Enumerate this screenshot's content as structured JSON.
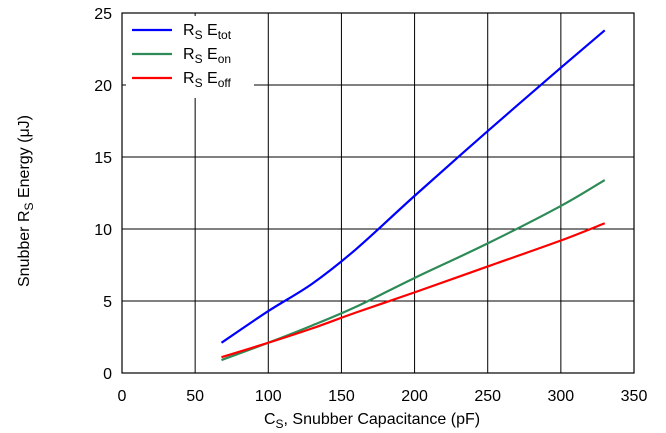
{
  "chart_data": {
    "type": "line",
    "xlabel": {
      "main": "C",
      "sub": "S",
      "rest": ", Snubber Capacitance (pF)"
    },
    "ylabel": {
      "pre": "Snubber  R",
      "sub": "S",
      "rest": " Energy (μJ)"
    },
    "xlim": [
      0,
      350
    ],
    "ylim": [
      0,
      25
    ],
    "xticks": [
      0,
      50,
      100,
      150,
      200,
      250,
      300,
      350
    ],
    "yticks": [
      0,
      5,
      10,
      15,
      20,
      25
    ],
    "grid": true,
    "legend_position": "top-left",
    "series": [
      {
        "name": "R_S E_tot",
        "label_main": "R",
        "label_sub": "S",
        "label_main2": " E",
        "label_sub2": "tot",
        "color": "#0000ff",
        "x": [
          68,
          100,
          130,
          160,
          200,
          250,
          300,
          330
        ],
        "y": [
          2.1,
          4.3,
          6.2,
          8.6,
          12.3,
          16.8,
          21.2,
          23.8
        ]
      },
      {
        "name": "R_S E_on",
        "label_main": "R",
        "label_sub": "S",
        "label_main2": " E",
        "label_sub2": "on",
        "color": "#2e8b57",
        "x": [
          68,
          100,
          130,
          160,
          200,
          250,
          300,
          330
        ],
        "y": [
          0.9,
          2.1,
          3.3,
          4.6,
          6.6,
          9.0,
          11.6,
          13.4
        ]
      },
      {
        "name": "R_S E_off",
        "label_main": "R",
        "label_sub": "S",
        "label_main2": " E",
        "label_sub2": "off",
        "color": "#ff0000",
        "x": [
          68,
          100,
          130,
          160,
          200,
          250,
          300,
          330
        ],
        "y": [
          1.1,
          2.1,
          3.1,
          4.2,
          5.6,
          7.4,
          9.2,
          10.4
        ]
      }
    ]
  }
}
